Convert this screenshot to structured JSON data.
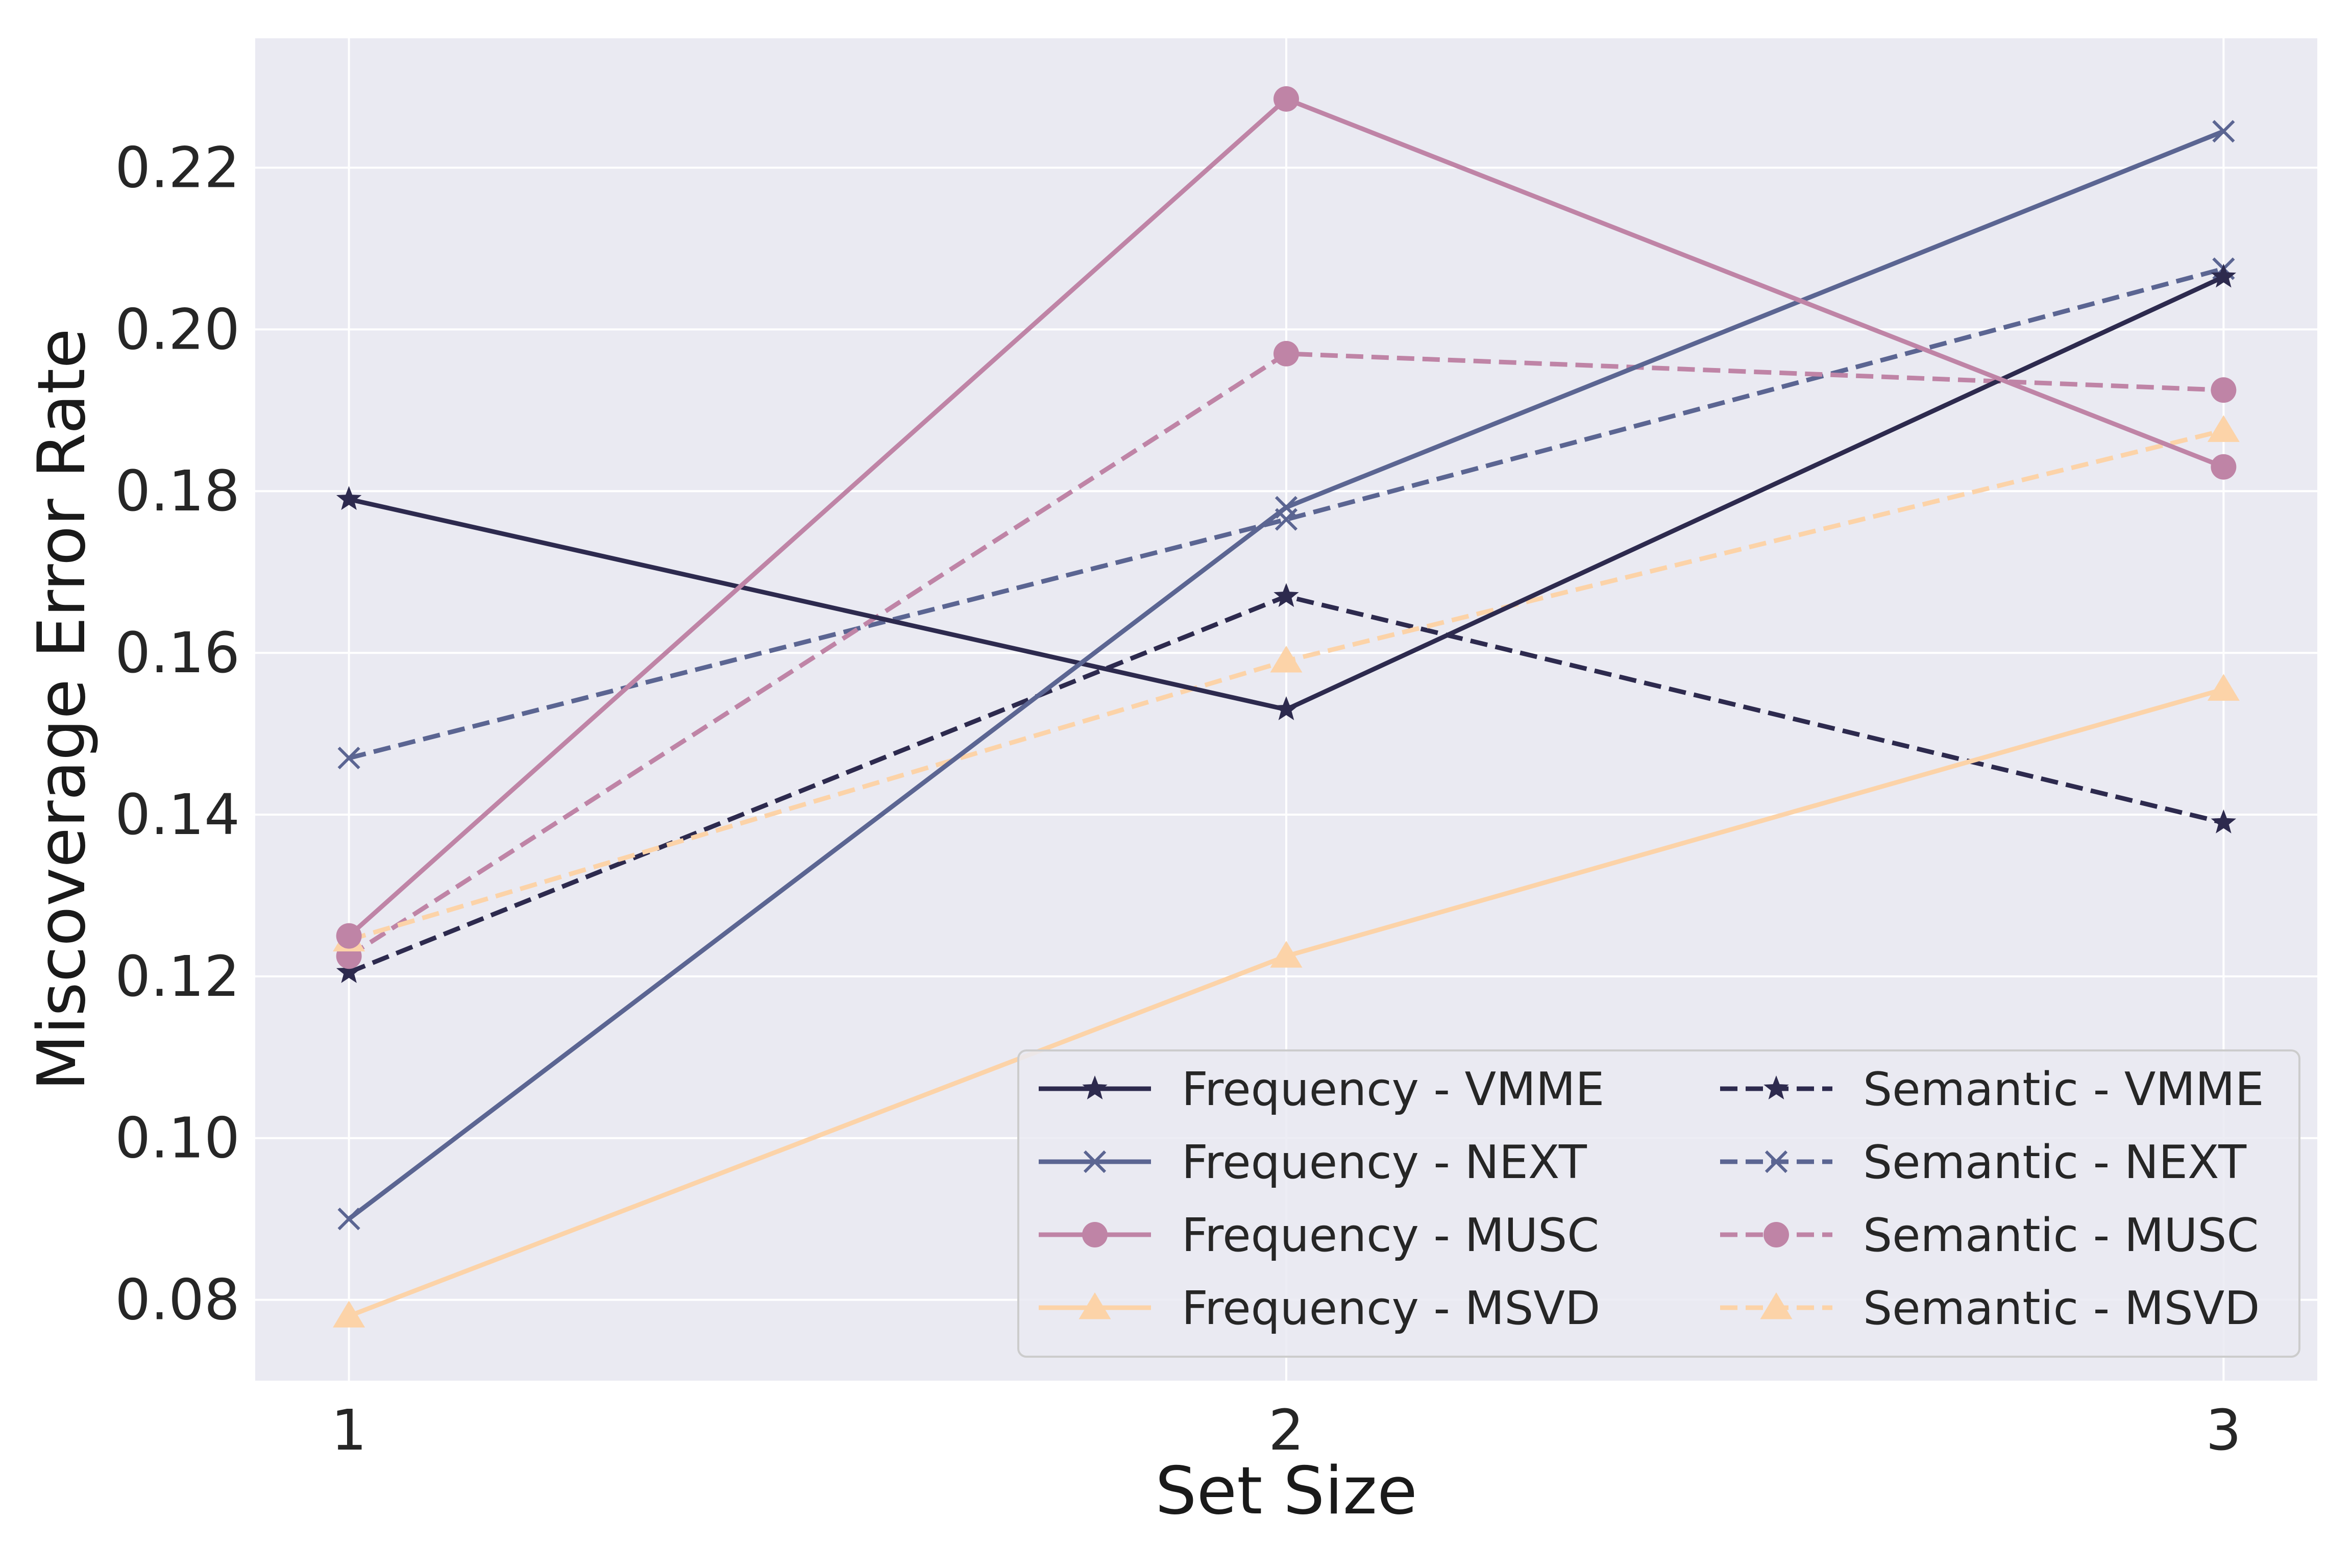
{
  "chart_data": {
    "type": "line",
    "title": "",
    "xlabel": "Set Size",
    "ylabel": "Miscoverage Error Rate",
    "x": [
      1,
      2,
      3
    ],
    "xlim": [
      0.9,
      3.1
    ],
    "ylim": [
      0.07,
      0.236
    ],
    "yticks": [
      0.08,
      0.1,
      0.12,
      0.14,
      0.16,
      0.18,
      0.2,
      0.22
    ],
    "ytick_labels": [
      "0.08",
      "0.10",
      "0.12",
      "0.14",
      "0.16",
      "0.18",
      "0.20",
      "0.22"
    ],
    "xticks": [
      1,
      2,
      3
    ],
    "xtick_labels": [
      "1",
      "2",
      "3"
    ],
    "grid": true,
    "legend_position": "bottom-right",
    "series": [
      {
        "name": "Frequency - VMME",
        "values": [
          0.179,
          0.153,
          0.2065
        ],
        "color": "#2d2a4e",
        "style": "solid",
        "marker": "star"
      },
      {
        "name": "Frequency - NEXT",
        "values": [
          0.09,
          0.178,
          0.2245
        ],
        "color": "#5b6592",
        "style": "solid",
        "marker": "x"
      },
      {
        "name": "Frequency - MUSC",
        "values": [
          0.125,
          0.2285,
          0.183
        ],
        "color": "#bf84a6",
        "style": "solid",
        "marker": "circle"
      },
      {
        "name": "Frequency - MSVD",
        "values": [
          0.078,
          0.1225,
          0.1555
        ],
        "color": "#fcd3a8",
        "style": "solid",
        "marker": "triangle"
      },
      {
        "name": "Semantic - VMME",
        "values": [
          0.1205,
          0.167,
          0.139
        ],
        "color": "#2d2a4e",
        "style": "dashed",
        "marker": "star"
      },
      {
        "name": "Semantic - NEXT",
        "values": [
          0.147,
          0.1765,
          0.2075
        ],
        "color": "#5b6592",
        "style": "dashed",
        "marker": "x"
      },
      {
        "name": "Semantic - MUSC",
        "values": [
          0.1225,
          0.197,
          0.1925
        ],
        "color": "#bf84a6",
        "style": "dashed",
        "marker": "circle"
      },
      {
        "name": "Semantic - MSVD",
        "values": [
          0.1245,
          0.159,
          0.1875
        ],
        "color": "#fcd3a8",
        "style": "dashed",
        "marker": "triangle"
      }
    ]
  },
  "colors": {
    "plot_background": "#eaeaf2",
    "grid": "#ffffff",
    "legend_border": "#cccccc"
  }
}
